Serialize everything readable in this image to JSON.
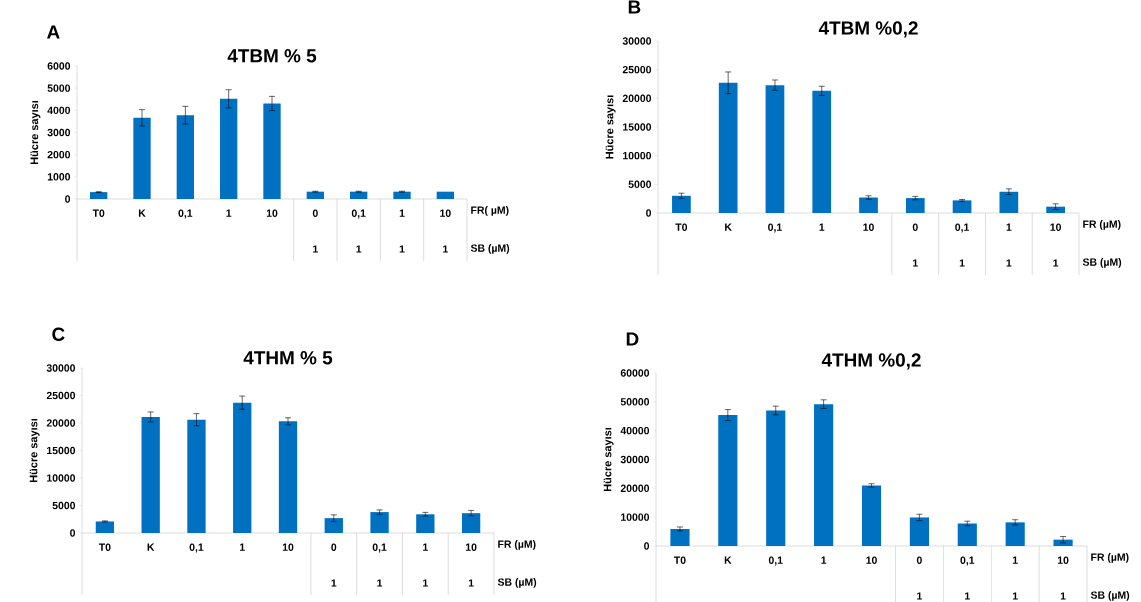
{
  "chart_data": [
    {
      "type": "bar",
      "title": "4TBM  % 5",
      "ylabel": "Hücre sayısı",
      "xlabel": "FR( µM)",
      "color": "#0070c0",
      "categories": [
        "T0",
        "K",
        "0,1",
        "1",
        "10",
        "0",
        "0,1",
        "1",
        "10"
      ],
      "values": [
        310,
        3660,
        3780,
        4520,
        4310,
        330,
        330,
        330,
        330
      ],
      "errors": [
        20,
        370,
        400,
        410,
        320,
        20,
        20,
        20,
        null
      ],
      "ylim": [
        0,
        6000
      ],
      "yticks": [
        0,
        1000,
        2000,
        3000,
        4000,
        5000,
        6000
      ],
      "annotations": [
        "A",
        "SB (µM)",
        "1",
        "1",
        "1",
        "1"
      ]
    },
    {
      "type": "bar",
      "title": "4TBM   %0,2",
      "ylabel": "Hücre sayısı",
      "xlabel": "FR (µM)",
      "color": "#0070c0",
      "categories": [
        "T0",
        "K",
        "0,1",
        "1",
        "10",
        "0",
        "0,1",
        "1",
        "10"
      ],
      "values": [
        3000,
        22700,
        22300,
        21300,
        2700,
        2600,
        2200,
        3700,
        1100
      ],
      "errors": [
        450,
        1900,
        900,
        800,
        300,
        300,
        150,
        500,
        500
      ],
      "ylim": [
        0,
        30000
      ],
      "yticks": [
        0,
        5000,
        10000,
        15000,
        20000,
        25000,
        30000
      ],
      "annotations": [
        "B",
        "SB (µM)",
        "1",
        "1",
        "1",
        "1"
      ]
    },
    {
      "type": "bar",
      "title": "4THM  % 5",
      "ylabel": "Hücre sayısı",
      "xlabel": "FR (µM)",
      "color": "#0070c0",
      "categories": [
        "T0",
        "K",
        "0,1",
        "1",
        "10",
        "0",
        "0,1",
        "1",
        "10"
      ],
      "values": [
        2100,
        21100,
        20600,
        23700,
        20300,
        2700,
        3800,
        3400,
        3600
      ],
      "errors": [
        100,
        900,
        1100,
        1200,
        650,
        600,
        400,
        350,
        500
      ],
      "ylim": [
        0,
        30000
      ],
      "yticks": [
        0,
        5000,
        10000,
        15000,
        20000,
        25000,
        30000
      ],
      "annotations": [
        "C",
        "SB (µM)",
        "1",
        "1",
        "1",
        "1"
      ]
    },
    {
      "type": "bar",
      "title": "4THM  %0,2",
      "ylabel": "Hücre sayısı",
      "xlabel": "FR (µM)",
      "color": "#0070c0",
      "categories": [
        "T0",
        "K",
        "0,1",
        "1",
        "10",
        "0",
        "0,1",
        "1",
        "10"
      ],
      "values": [
        5900,
        45400,
        47000,
        49200,
        21000,
        9900,
        7800,
        8200,
        2200
      ],
      "errors": [
        700,
        1900,
        1500,
        1500,
        600,
        1100,
        800,
        900,
        1100
      ],
      "ylim": [
        0,
        60000
      ],
      "yticks": [
        0,
        10000,
        20000,
        30000,
        40000,
        50000,
        60000
      ],
      "annotations": [
        "D",
        "SB (µM)",
        "1",
        "1",
        "1",
        "1"
      ]
    }
  ]
}
